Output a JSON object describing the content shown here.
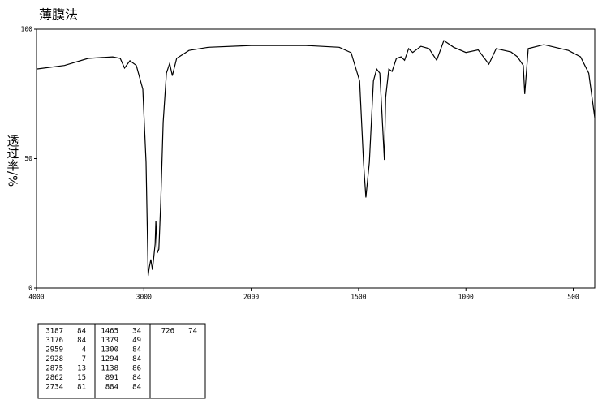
{
  "chart_data": {
    "type": "line",
    "title": "薄膜法",
    "y_label": "透过率/%",
    "x": [
      4000,
      3740,
      3520,
      3290,
      3220,
      3180,
      3130,
      3070,
      3010,
      2980,
      2960,
      2950,
      2935,
      2920,
      2895,
      2888,
      2875,
      2860,
      2843,
      2820,
      2790,
      2760,
      2735,
      2695,
      2580,
      2400,
      2000,
      1745,
      1590,
      1535,
      1495,
      1477,
      1466,
      1450,
      1431,
      1416,
      1401,
      1389,
      1380,
      1374,
      1359,
      1344,
      1324,
      1302,
      1286,
      1267,
      1248,
      1210,
      1172,
      1136,
      1103,
      1057,
      1000,
      943,
      893,
      859,
      790,
      760,
      733,
      726,
      710,
      637,
      523,
      466,
      428,
      400
    ],
    "values": [
      84.6,
      86,
      88.7,
      89.3,
      88.7,
      85,
      87.8,
      86,
      76.8,
      48.6,
      4.7,
      7.8,
      11,
      7,
      17,
      26,
      13.5,
      15,
      33,
      64,
      83,
      86.8,
      82,
      88.7,
      91.8,
      93,
      93.7,
      93.7,
      93,
      90.9,
      80,
      48.6,
      35,
      48.6,
      80,
      84.6,
      83,
      64,
      49.5,
      73.7,
      84.6,
      83.7,
      88.7,
      89.3,
      88,
      92.5,
      91,
      93.4,
      92.5,
      88,
      95.6,
      93,
      91,
      92,
      86.5,
      92.5,
      91.2,
      89.3,
      86,
      75,
      92.5,
      94,
      91.8,
      89.3,
      83,
      65.8
    ],
    "color": "#000000",
    "xlim": [
      4000,
      400
    ],
    "xticks": [
      4000,
      3000,
      2000,
      1500,
      1000,
      500
    ],
    "xscale": {
      "break": 2000,
      "factor": 2
    },
    "ylim": [
      0,
      100
    ],
    "yticks": [
      0,
      50,
      100
    ]
  },
  "peak_table": [
    [
      [
        3187,
        84
      ],
      [
        3176,
        84
      ],
      [
        2959,
        4
      ],
      [
        2928,
        7
      ],
      [
        2875,
        13
      ],
      [
        2862,
        15
      ],
      [
        2734,
        81
      ]
    ],
    [
      [
        1465,
        34
      ],
      [
        1379,
        49
      ],
      [
        1300,
        84
      ],
      [
        1294,
        84
      ],
      [
        1138,
        86
      ],
      [
        891,
        84
      ],
      [
        884,
        84
      ]
    ],
    [
      [
        726,
        74
      ]
    ]
  ]
}
